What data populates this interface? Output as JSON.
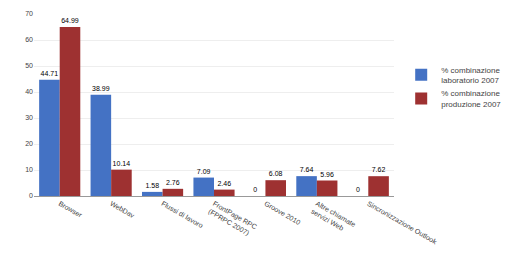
{
  "chart_data": {
    "type": "bar",
    "categories": [
      "Browser",
      "WebDav",
      "Flussi di lavoro",
      "FrontPage RPC\n(FPRPC 2007)",
      "Groove 2010",
      "Altre chiamate\nservizi Web",
      "Sincronizzazione Outlook"
    ],
    "series": [
      {
        "name": "% combinazione\nlaboratorio 2007",
        "color": "#4472C4",
        "values": [
          44.71,
          38.99,
          1.58,
          7.09,
          0,
          7.64,
          0
        ]
      },
      {
        "name": "% combinazione\nproduzione 2007",
        "color": "#9E3131",
        "values": [
          64.99,
          10.14,
          2.76,
          2.46,
          6.08,
          5.96,
          7.62
        ]
      }
    ],
    "ylim": [
      0,
      70
    ],
    "yticks": [
      0,
      10,
      20,
      30,
      40,
      50,
      60,
      70
    ],
    "grid": true,
    "legend": "right",
    "data_labels": true
  }
}
